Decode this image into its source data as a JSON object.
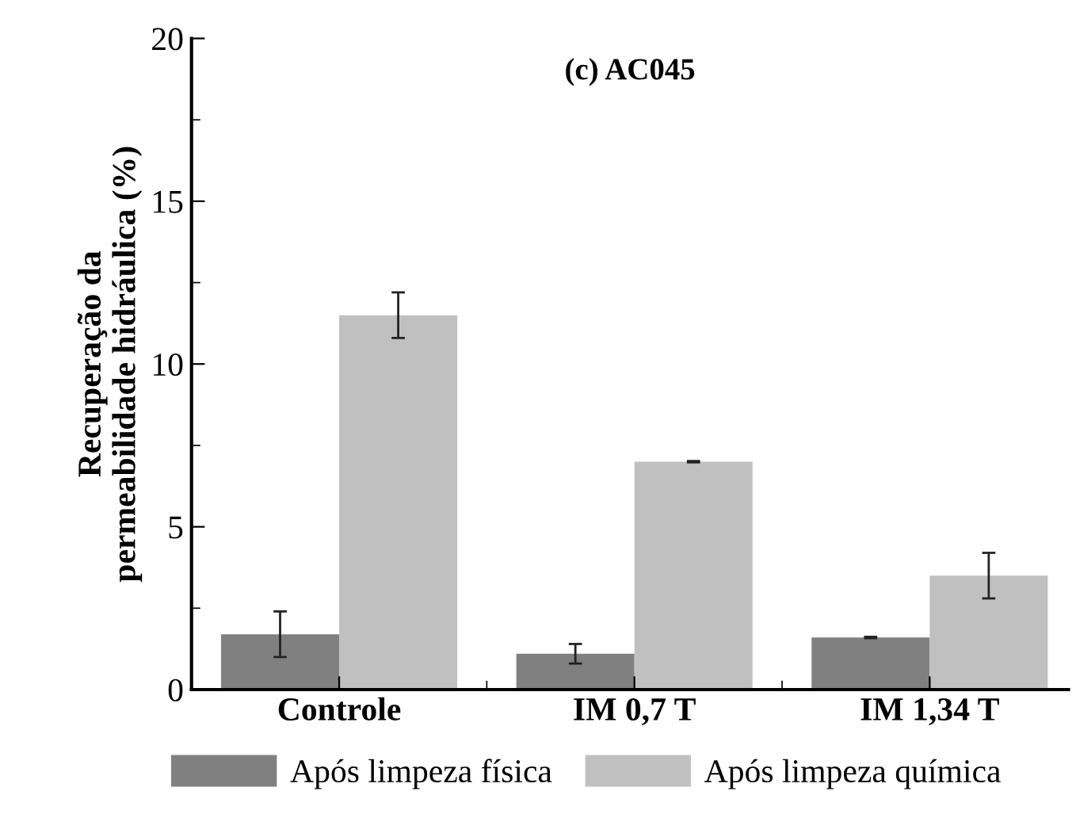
{
  "chart_data": {
    "type": "bar",
    "title": "(c) AC045",
    "ylabel": "Recuperação da\npermeabilidade hidráulica (%)",
    "categories": [
      "Controle",
      "IM 0,7 T",
      "IM 1,34 T"
    ],
    "series": [
      {
        "name": "Após limpeza física",
        "color": "#808080",
        "values": [
          1.7,
          1.1,
          1.6
        ],
        "errors": [
          0.7,
          0.3,
          0.02
        ]
      },
      {
        "name": "Após limpeza química",
        "color": "#c0c0c0",
        "values": [
          11.5,
          7.0,
          3.5
        ],
        "errors": [
          0.7,
          0.02,
          0.7
        ]
      }
    ],
    "ylim": [
      0,
      20
    ],
    "yticks": [
      0,
      5,
      10,
      15,
      20
    ],
    "grid": false,
    "legend": "bottom"
  }
}
